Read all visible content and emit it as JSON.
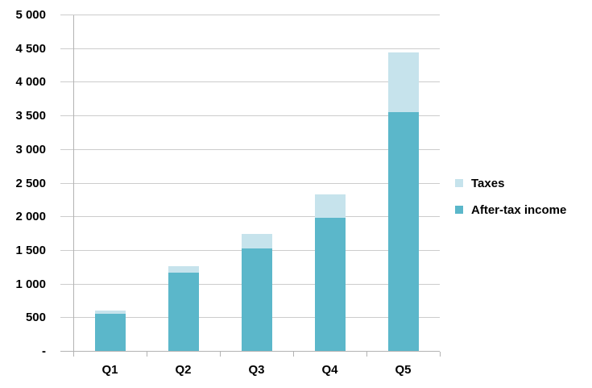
{
  "chart_data": {
    "type": "bar",
    "stacked": true,
    "title": "",
    "xlabel": "",
    "ylabel": "",
    "categories": [
      "Q1",
      "Q2",
      "Q3",
      "Q4",
      "Q5"
    ],
    "series": [
      {
        "name": "After-tax income",
        "color": "#5BB7CA",
        "values": [
          565,
          1175,
          1540,
          1990,
          3560
        ]
      },
      {
        "name": "Taxes",
        "color": "#C6E3EC",
        "values": [
          45,
          95,
          210,
          350,
          885
        ]
      }
    ],
    "totals": [
      610,
      1270,
      1750,
      2340,
      4445
    ],
    "ylim": [
      0,
      5000
    ],
    "ytick_interval": 500,
    "ytick_labels": [
      "-",
      "500",
      "1 000",
      "1 500",
      "2 000",
      "2 500",
      "3 000",
      "3 500",
      "4 000",
      "4 500",
      "5 000"
    ],
    "grid": true,
    "legend_position": "right"
  },
  "legend": {
    "items": [
      {
        "label": "Taxes",
        "color": "#C6E3EC"
      },
      {
        "label": "After-tax income",
        "color": "#5BB7CA"
      }
    ]
  },
  "colors": {
    "background": "#FFFFFF",
    "gridline": "#CCCCCC",
    "axis_line": "#B3B3B3",
    "text": "#000000"
  }
}
